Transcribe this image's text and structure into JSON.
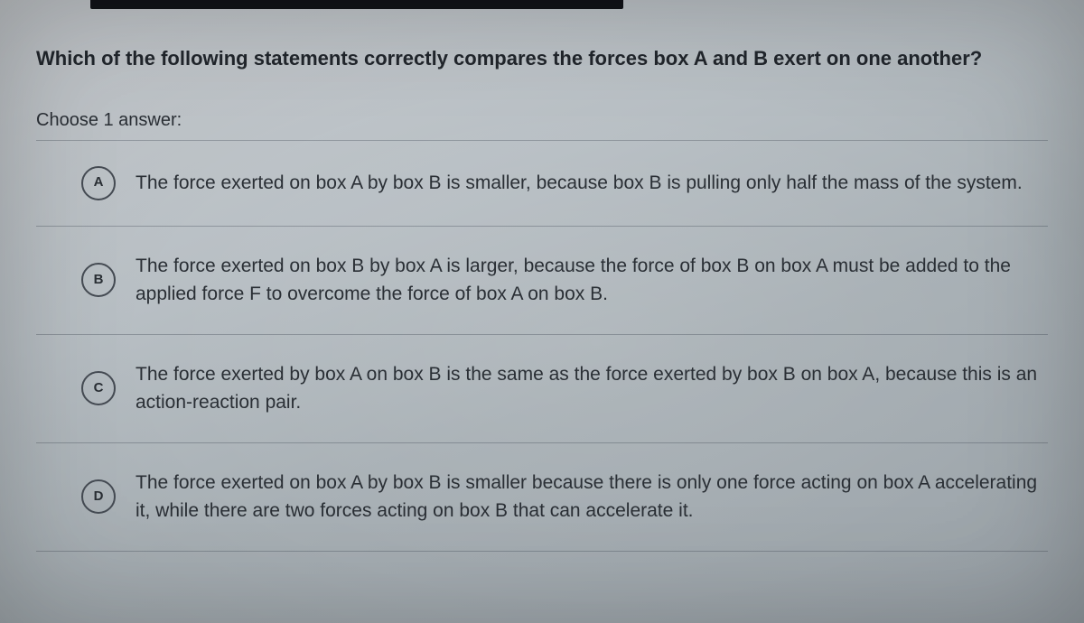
{
  "question": "Which of the following statements correctly compares the forces box A and B exert on one another?",
  "choose_label": "Choose 1 answer:",
  "options": [
    {
      "letter": "A",
      "text": "The force exerted on box A by box B is smaller, because box B is pulling only half the mass of the system."
    },
    {
      "letter": "B",
      "text": "The force exerted on box B by box A is larger, because the force of box B on box A must be added to the applied force F to overcome the force of box A on box B."
    },
    {
      "letter": "C",
      "text": "The force exerted by box A on box B is the same as the force exerted by box B on box A, because this is an action-reaction pair."
    },
    {
      "letter": "D",
      "text": "The force exerted on box A by box B is smaller because there is only one force acting on box A accelerating it, while there are two forces acting on box B that can accelerate it."
    }
  ],
  "colors": {
    "text": "#2a2f35",
    "divider": "rgba(60,70,80,0.35)",
    "letter_border": "#454b53"
  }
}
